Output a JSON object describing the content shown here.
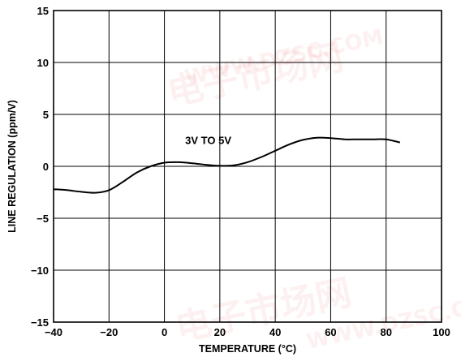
{
  "chart_data": {
    "type": "line",
    "xlabel": "TEMPERATURE (°C)",
    "ylabel": "LINE REGULATION (ppm/V)",
    "xlim": [
      -40,
      100
    ],
    "ylim": [
      -15,
      15
    ],
    "xticks": [
      -40,
      -20,
      0,
      20,
      40,
      60,
      80,
      100
    ],
    "yticks": [
      15,
      10,
      5,
      0,
      -5,
      -10,
      -15
    ],
    "grid": true,
    "annotation": "3V TO 5V",
    "series": [
      {
        "x": [
          -40,
          -35,
          -30,
          -25,
          -20,
          -15,
          -10,
          -5,
          0,
          5,
          10,
          15,
          20,
          25,
          30,
          35,
          40,
          45,
          50,
          55,
          60,
          65,
          70,
          75,
          80,
          85
        ],
        "y": [
          -2.2,
          -2.3,
          -2.45,
          -2.55,
          -2.3,
          -1.5,
          -0.6,
          0.0,
          0.35,
          0.4,
          0.3,
          0.15,
          0.05,
          0.1,
          0.4,
          0.9,
          1.5,
          2.1,
          2.55,
          2.75,
          2.72,
          2.6,
          2.6,
          2.6,
          2.6,
          2.3
        ]
      }
    ]
  },
  "watermark": {
    "lines": [
      "电子市场网",
      "WWW.DZSC.COM"
    ]
  }
}
